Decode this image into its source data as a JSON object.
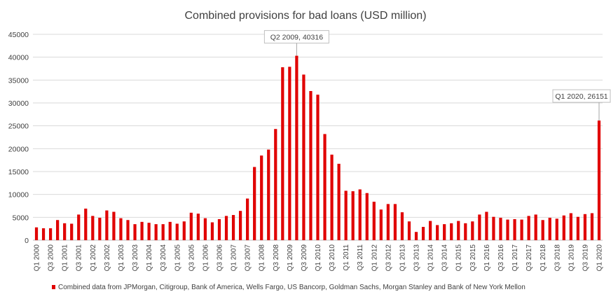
{
  "chart_data": {
    "type": "bar",
    "title": "Combined provisions for bad loans (USD million)",
    "xlabel": "",
    "ylabel": "",
    "ylim": [
      0,
      45000
    ],
    "yticks": [
      0,
      5000,
      10000,
      15000,
      20000,
      25000,
      30000,
      35000,
      40000,
      45000
    ],
    "grid": true,
    "legend_position": "bottom",
    "bar_color": "#e00000",
    "categories": [
      "Q1 2000",
      "Q2 2000",
      "Q3 2000",
      "Q4 2000",
      "Q1 2001",
      "Q2 2001",
      "Q3 2001",
      "Q4 2001",
      "Q1 2002",
      "Q2 2002",
      "Q3 2002",
      "Q4 2002",
      "Q1 2003",
      "Q2 2003",
      "Q3 2003",
      "Q4 2003",
      "Q1 2004",
      "Q2 2004",
      "Q3 2004",
      "Q4 2004",
      "Q1 2005",
      "Q2 2005",
      "Q3 2005",
      "Q4 2005",
      "Q1 2006",
      "Q2 2006",
      "Q3 2006",
      "Q4 2006",
      "Q1 2007",
      "Q2 2007",
      "Q3 2007",
      "Q4 2007",
      "Q1 2008",
      "Q2 2008",
      "Q3 2008",
      "Q4 2008",
      "Q1 2009",
      "Q2 2009",
      "Q3 2009",
      "Q4 2009",
      "Q1 2010",
      "Q2 2010",
      "Q3 2010",
      "Q4 2010",
      "Q1 2011",
      "Q2 2011",
      "Q3 2011",
      "Q4 2011",
      "Q1 2012",
      "Q2 2012",
      "Q3 2012",
      "Q4 2012",
      "Q1 2013",
      "Q2 2013",
      "Q3 2013",
      "Q4 2013",
      "Q1 2014",
      "Q2 2014",
      "Q3 2014",
      "Q4 2014",
      "Q1 2015",
      "Q2 2015",
      "Q3 2015",
      "Q4 2015",
      "Q1 2016",
      "Q2 2016",
      "Q3 2016",
      "Q4 2016",
      "Q1 2017",
      "Q2 2017",
      "Q3 2017",
      "Q4 2017",
      "Q1 2018",
      "Q2 2018",
      "Q3 2018",
      "Q4 2018",
      "Q1 2019",
      "Q2 2019",
      "Q3 2019",
      "Q4 2019",
      "Q1 2020"
    ],
    "series": [
      {
        "name": "Combined data from JPMorgan, Citigroup, Bank of America, Wells Fargo, US Bancorp, Goldman Sachs, Morgan Stanley and Bank of New York Mellon",
        "values": [
          2800,
          2600,
          2600,
          4400,
          3700,
          3600,
          5600,
          6900,
          5300,
          4900,
          6500,
          6200,
          4800,
          4400,
          3500,
          4000,
          3800,
          3500,
          3500,
          4000,
          3600,
          4100,
          6000,
          5800,
          4800,
          3900,
          4600,
          5300,
          5500,
          6400,
          9100,
          16000,
          18500,
          19800,
          24300,
          37800,
          37900,
          40316,
          36200,
          32600,
          31800,
          23200,
          18700,
          16700,
          10800,
          10700,
          11100,
          10300,
          8400,
          6700,
          7900,
          7900,
          6100,
          4100,
          1800,
          2900,
          4200,
          3300,
          3500,
          3700,
          4200,
          3700,
          4100,
          5600,
          6200,
          5100,
          4900,
          4500,
          4600,
          4500,
          5300,
          5600,
          4400,
          4900,
          4700,
          5400,
          5900,
          5100,
          5700,
          5900,
          26151
        ]
      }
    ],
    "tick_labels": [
      "Q1 2000",
      "Q3 2000",
      "Q1 2001",
      "Q3 2001",
      "Q1 2002",
      "Q3 2002",
      "Q1 2003",
      "Q3 2003",
      "Q1 2004",
      "Q3 2004",
      "Q1 2005",
      "Q3 2005",
      "Q1 2006",
      "Q3 2006",
      "Q1 2007",
      "Q3 2007",
      "Q1 2008",
      "Q3 2008",
      "Q1 2009",
      "Q3 2009",
      "Q1 2010",
      "Q3 2010",
      "Q1 2011",
      "Q3 2011",
      "Q1 2012",
      "Q3 2012",
      "Q1 2013",
      "Q3 2013",
      "Q1 2014",
      "Q3 2014",
      "Q1 2015",
      "Q3 2015",
      "Q1 2016",
      "Q3 2016",
      "Q1 2017",
      "Q3 2017",
      "Q1 2018",
      "Q3 2018",
      "Q1 2019",
      "Q3 2019",
      "Q1 2020"
    ],
    "annotations": [
      {
        "category": "Q2 2009",
        "label": "Q2 2009, 40316"
      },
      {
        "category": "Q1 2020",
        "label": "Q1 2020, 26151"
      }
    ]
  }
}
